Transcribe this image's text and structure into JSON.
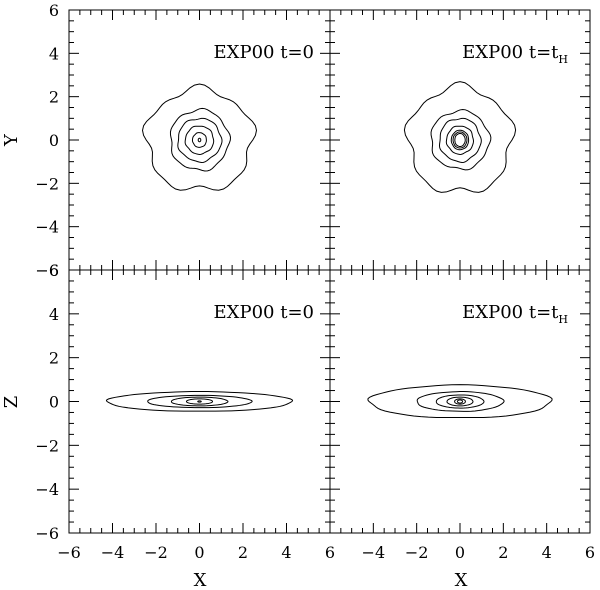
{
  "chart_data": {
    "type": "contour",
    "layout": "2x2 panels sharing axes",
    "xlim": [
      -6,
      6
    ],
    "ylim": [
      -6,
      6
    ],
    "major_ticks": [
      -6,
      -4,
      -2,
      0,
      2,
      4,
      6
    ],
    "minor_tick_step": 0.5,
    "xlabel": "X",
    "ylabels": [
      "Y",
      "Z"
    ],
    "grid": false,
    "panels": [
      {
        "id": "face-on-t0",
        "label": {
          "main": "EXP00  t=0",
          "subscript": ""
        },
        "ylabel": "Y",
        "contours": [
          {
            "rx": 2.45,
            "ry": 2.35,
            "wobble": 0.1
          },
          {
            "rx": 1.35,
            "ry": 1.4,
            "wobble": 0.06
          },
          {
            "rx": 1.0,
            "ry": 1.0,
            "wobble": 0.05
          },
          {
            "rx": 0.65,
            "ry": 0.65,
            "wobble": 0.04
          },
          {
            "rx": 0.32,
            "ry": 0.34,
            "wobble": 0.03
          },
          {
            "rx": 0.06,
            "ry": 0.08,
            "wobble": 0.0
          }
        ]
      },
      {
        "id": "face-on-tH",
        "label": {
          "main": "EXP00  t=t",
          "subscript": "H"
        },
        "ylabel": "",
        "contours": [
          {
            "rx": 2.4,
            "ry": 2.45,
            "wobble": 0.1
          },
          {
            "rx": 1.35,
            "ry": 1.35,
            "wobble": 0.06
          },
          {
            "rx": 0.95,
            "ry": 1.0,
            "wobble": 0.05
          },
          {
            "rx": 0.62,
            "ry": 0.65,
            "wobble": 0.04
          },
          {
            "rx": 0.4,
            "ry": 0.45,
            "wobble": 0.02
          },
          {
            "rx": 0.32,
            "ry": 0.37,
            "wobble": 0.02
          },
          {
            "rx": 0.24,
            "ry": 0.3,
            "wobble": 0.02
          }
        ]
      },
      {
        "id": "edge-on-t0",
        "label": {
          "main": "EXP00  t=0",
          "subscript": ""
        },
        "ylabel": "Z",
        "contours": [
          {
            "rx": 4.25,
            "ry": 0.45,
            "wobble": 0.02
          },
          {
            "rx": 2.4,
            "ry": 0.28,
            "wobble": 0.01
          },
          {
            "rx": 1.3,
            "ry": 0.2,
            "wobble": 0.01
          },
          {
            "rx": 0.6,
            "ry": 0.12,
            "wobble": 0.0
          },
          {
            "rx": 0.08,
            "ry": 0.03,
            "wobble": 0.0
          }
        ]
      },
      {
        "id": "edge-on-tH",
        "label": {
          "main": "EXP00  t=t",
          "subscript": "H"
        },
        "ylabel": "",
        "contours": [
          {
            "rx": 4.2,
            "ry": 0.75,
            "wobble": 0.03
          },
          {
            "rx": 2.0,
            "ry": 0.45,
            "wobble": 0.02
          },
          {
            "rx": 1.1,
            "ry": 0.3,
            "wobble": 0.01
          },
          {
            "rx": 0.6,
            "ry": 0.2,
            "wobble": 0.01
          },
          {
            "rx": 0.25,
            "ry": 0.12,
            "wobble": 0.0
          },
          {
            "rx": 0.12,
            "ry": 0.07,
            "wobble": 0.0
          }
        ]
      }
    ]
  }
}
